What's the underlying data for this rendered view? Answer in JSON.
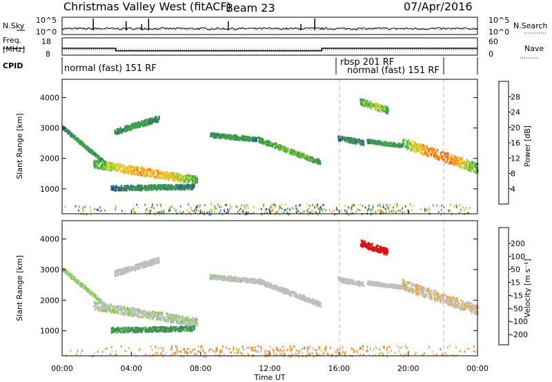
{
  "chart_data": [
    {
      "type": "line",
      "panel": "noise",
      "title": "Christmas Valley West (fitACF)",
      "beam_label": "Beam 23",
      "date": "07/Apr/2016",
      "left_label": "N.Sky",
      "right_label": "N.Search",
      "left_ticks": [
        "10^5",
        "10^0"
      ],
      "right_ticks": [
        "10^5",
        "10^0"
      ]
    },
    {
      "type": "line",
      "panel": "frequency",
      "left_label": [
        "Freq.",
        "[MHz]"
      ],
      "right_label": "Nave",
      "left_ticks": [
        "18",
        "8"
      ],
      "right_ticks": [
        "60",
        "0"
      ],
      "series": [
        {
          "name": "Freq.",
          "x": [
            0,
            3.1,
            3.1,
            15.0,
            15.0,
            24
          ],
          "y": [
            12,
            12,
            10.5,
            10.5,
            12,
            12
          ]
        }
      ]
    },
    {
      "type": "table",
      "panel": "cpid",
      "label": "CPID",
      "segments": [
        {
          "start": 0,
          "end": 16.0,
          "text": "normal (fast) 151 RF"
        },
        {
          "start": 16.0,
          "end": 16.2,
          "text": "rbsp 201 RF"
        },
        {
          "start": 16.2,
          "end": 22.0,
          "text": "normal (fast) 151 RF"
        }
      ]
    },
    {
      "type": "heatmap",
      "panel": "power",
      "ylabel": "Slant Range [km]",
      "ylim": [
        180,
        4600
      ],
      "yticks": [
        1000,
        2000,
        3000,
        4000
      ],
      "colorbar_label": "Power [dB]",
      "colorbar_ticks": [
        4,
        8,
        12,
        16,
        20,
        24,
        28
      ],
      "colorbar_range": [
        0,
        32
      ],
      "colors": [
        "#0000dd",
        "#1d3fb0",
        "#2f6f7a",
        "#3e8f5a",
        "#39a845",
        "#8ccc3a",
        "#e6d12a",
        "#f5a623",
        "#f06a1c",
        "#e01010"
      ],
      "features": [
        {
          "t0": 0.0,
          "t1": 2.5,
          "r0": 3050,
          "r1": 1850,
          "w": 120,
          "v0": 10,
          "v1": 13
        },
        {
          "t0": 1.8,
          "t1": 7.8,
          "r0": 1850,
          "r1": 1300,
          "w": 260,
          "v0": 14,
          "v1": 24
        },
        {
          "t0": 2.8,
          "t1": 7.6,
          "r0": 1050,
          "r1": 1100,
          "w": 160,
          "v0": 8,
          "v1": 12
        },
        {
          "t0": 3.0,
          "t1": 5.6,
          "r0": 2900,
          "r1": 3350,
          "w": 180,
          "v0": 10,
          "v1": 13
        },
        {
          "t0": 8.5,
          "t1": 11.3,
          "r0": 2800,
          "r1": 2650,
          "w": 140,
          "v0": 10,
          "v1": 13
        },
        {
          "t0": 11.3,
          "t1": 14.9,
          "r0": 2650,
          "r1": 1900,
          "w": 160,
          "v0": 12,
          "v1": 16
        },
        {
          "t0": 15.9,
          "t1": 17.4,
          "r0": 2700,
          "r1": 2550,
          "w": 160,
          "v0": 8,
          "v1": 12
        },
        {
          "t0": 17.2,
          "t1": 18.8,
          "r0": 3900,
          "r1": 3600,
          "w": 220,
          "v0": 14,
          "v1": 18
        },
        {
          "t0": 17.6,
          "t1": 19.6,
          "r0": 2600,
          "r1": 2450,
          "w": 120,
          "v0": 10,
          "v1": 14
        },
        {
          "t0": 19.6,
          "t1": 24.0,
          "r0": 2550,
          "r1": 1700,
          "w": 320,
          "v0": 14,
          "v1": 26
        }
      ]
    },
    {
      "type": "heatmap",
      "panel": "velocity",
      "ylabel": "Slant Range [km]",
      "ylim": [
        180,
        4600
      ],
      "yticks": [
        1000,
        2000,
        3000,
        4000
      ],
      "colorbar_label": "Velocity [m s⁻¹]",
      "colorbar_ticks": [
        200,
        100,
        50,
        15,
        -15,
        -50,
        -100,
        -200
      ],
      "colors": [
        "#1f3a9a",
        "#2f6f7a",
        "#3e8f5a",
        "#7fcf3f",
        "#bfbfbf",
        "#f5a623",
        "#f07a1c",
        "#e01010"
      ],
      "features": [
        {
          "t0": 0.0,
          "t1": 2.5,
          "r0": 3050,
          "r1": 1850,
          "w": 120,
          "v": 15
        },
        {
          "t0": 1.8,
          "t1": 7.8,
          "r0": 1850,
          "r1": 1300,
          "w": 260,
          "v": 10
        },
        {
          "t0": 2.8,
          "t1": 7.6,
          "r0": 1050,
          "r1": 1100,
          "w": 160,
          "v": 40
        },
        {
          "t0": 3.0,
          "t1": 5.6,
          "r0": 2900,
          "r1": 3350,
          "w": 180,
          "v": 0
        },
        {
          "t0": 8.5,
          "t1": 11.3,
          "r0": 2800,
          "r1": 2650,
          "w": 140,
          "v": 5
        },
        {
          "t0": 11.3,
          "t1": 14.9,
          "r0": 2650,
          "r1": 1900,
          "w": 160,
          "v": 0
        },
        {
          "t0": 15.9,
          "t1": 17.4,
          "r0": 2700,
          "r1": 2550,
          "w": 160,
          "v": 0
        },
        {
          "t0": 17.2,
          "t1": 18.8,
          "r0": 3900,
          "r1": 3600,
          "w": 220,
          "v": -180
        },
        {
          "t0": 17.6,
          "t1": 19.6,
          "r0": 2600,
          "r1": 2450,
          "w": 120,
          "v": 0
        },
        {
          "t0": 19.6,
          "t1": 24.0,
          "r0": 2550,
          "r1": 1700,
          "w": 320,
          "v": -10
        }
      ],
      "xlabel": "Time UT",
      "xticks": [
        "00:00",
        "04:00",
        "08:00",
        "12:00",
        "16:00",
        "20:00",
        "00:00"
      ],
      "xlim": [
        0,
        24
      ]
    }
  ]
}
